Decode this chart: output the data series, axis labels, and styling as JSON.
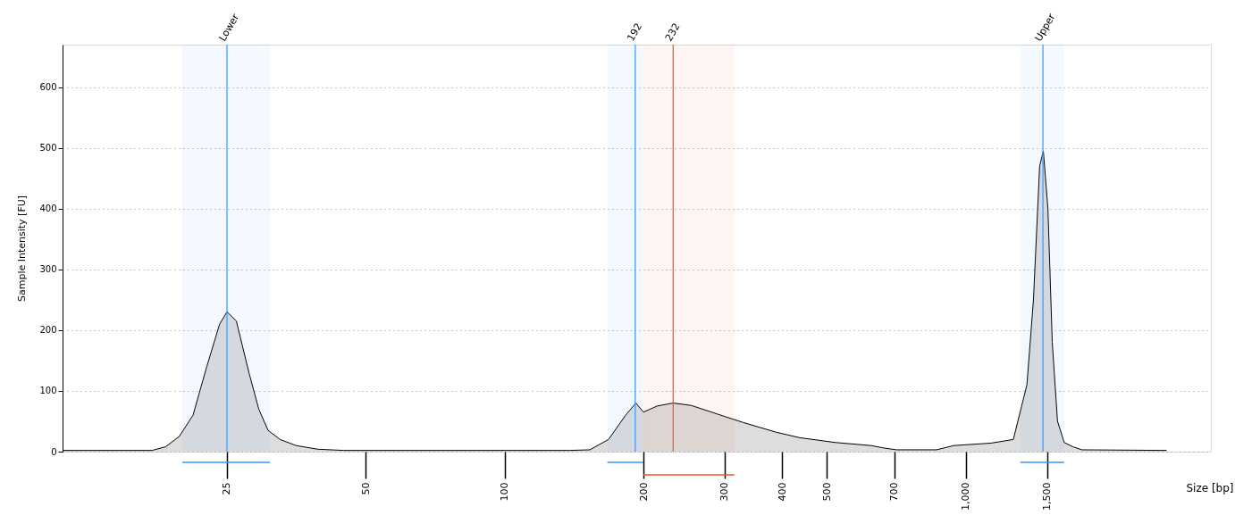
{
  "chart_data": {
    "type": "area",
    "xlabel": "Size [bp]",
    "ylabel": "Sample Intensity [FU]",
    "xlim": [
      11,
      3400
    ],
    "ylim": [
      0,
      670
    ],
    "log": "x",
    "xticks": [
      25,
      50,
      100,
      200,
      300,
      400,
      500,
      700,
      {
        "value": 1000,
        "label": "1,000"
      },
      {
        "value": 1500,
        "label": "1,500"
      }
    ],
    "yticks": [
      0,
      100,
      200,
      300,
      400,
      500,
      600
    ],
    "grid": "y",
    "series": [
      {
        "color": "#dddddd",
        "x": [
          11.05,
          17.2,
          18.4,
          19.7,
          21.1,
          22.6,
          24.1,
          25,
          26.2,
          27.9,
          29.3,
          30.7,
          32.6,
          35.3,
          39.3,
          44.7,
          138.5,
          153,
          168,
          183,
          192.6,
          200,
          214,
          232,
          254,
          289,
          329,
          388,
          436,
          522,
          623,
          664,
          708,
          864,
          942,
          1134,
          1268,
          1357,
          1402,
          1446,
          1473,
          1507,
          1540,
          1581,
          1635,
          1707,
          1786,
          2722
        ],
        "values": [
          2,
          2,
          8,
          25,
          60,
          140,
          210,
          230,
          215,
          130,
          70,
          35,
          20,
          10,
          4,
          2,
          2,
          3,
          20,
          60,
          80,
          65,
          75,
          80,
          76,
          62,
          48,
          32,
          23,
          15,
          10,
          6,
          3,
          3,
          10,
          14,
          20,
          110,
          250,
          470,
          495,
          400,
          180,
          50,
          15,
          8,
          3,
          2
        ]
      }
    ],
    "ref_lines": [
      {
        "axis": "x",
        "value": 25,
        "label": "Lower",
        "color": "#3399ff"
      },
      {
        "axis": "x",
        "value": 192,
        "label": "192",
        "color": "#3399ff"
      },
      {
        "axis": "x",
        "value": 232,
        "label": "232",
        "color": "#e8552a"
      },
      {
        "axis": "x",
        "value": 1470,
        "label": "Upper",
        "color": "#3399ff"
      }
    ],
    "bands": [
      {
        "axis": "x",
        "from": 20,
        "to": 31,
        "color": "#3399ff"
      },
      {
        "axis": "x",
        "from": 167,
        "to": 200,
        "color": "#3399ff"
      },
      {
        "axis": "x",
        "from": 200,
        "to": 315,
        "color": "#e8552a"
      },
      {
        "axis": "x",
        "from": 1313,
        "to": 1635,
        "color": "#3399ff"
      }
    ]
  }
}
